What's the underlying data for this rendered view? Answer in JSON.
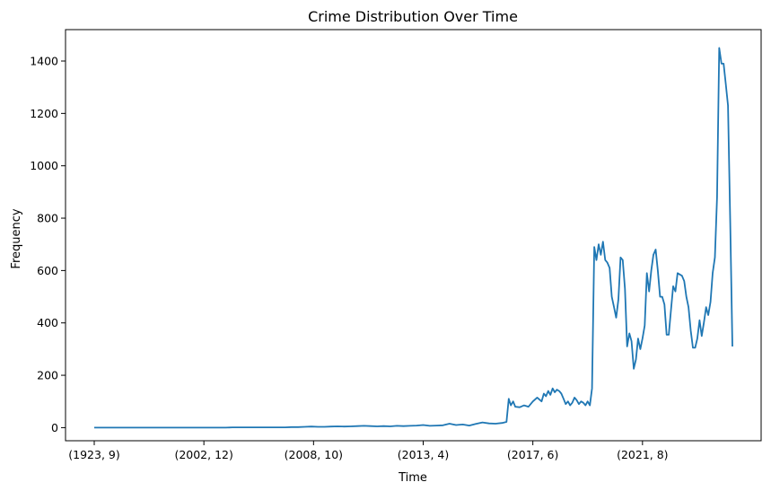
{
  "chart_data": {
    "type": "line",
    "title": "Crime Distribution Over Time",
    "xlabel": "Time",
    "ylabel": "Frequency",
    "ylim": [
      -50,
      1520
    ],
    "y_ticks": [
      0,
      200,
      400,
      600,
      800,
      1000,
      1200,
      1400
    ],
    "x_ticks": [
      {
        "label": "(1923, 9)",
        "index": 0
      },
      {
        "label": "(2002, 12)",
        "index": 50
      },
      {
        "label": "(2008, 10)",
        "index": 100
      },
      {
        "label": "(2013, 4)",
        "index": 150
      },
      {
        "label": "(2017, 6)",
        "index": 200
      },
      {
        "label": "(2021, 8)",
        "index": 250
      }
    ],
    "legend": "none",
    "grid": false,
    "series": [
      {
        "color": "#1f77b4",
        "points": [
          [
            0,
            0
          ],
          [
            3,
            0
          ],
          [
            6,
            0
          ],
          [
            9,
            0
          ],
          [
            12,
            0
          ],
          [
            15,
            0
          ],
          [
            18,
            0
          ],
          [
            21,
            0
          ],
          [
            24,
            0
          ],
          [
            27,
            0
          ],
          [
            30,
            0
          ],
          [
            33,
            0
          ],
          [
            36,
            0
          ],
          [
            39,
            0
          ],
          [
            42,
            0
          ],
          [
            45,
            0
          ],
          [
            48,
            0
          ],
          [
            51,
            0
          ],
          [
            54,
            0
          ],
          [
            57,
            0
          ],
          [
            60,
            0
          ],
          [
            63,
            1
          ],
          [
            66,
            1
          ],
          [
            69,
            1
          ],
          [
            72,
            1
          ],
          [
            75,
            1
          ],
          [
            78,
            1
          ],
          [
            81,
            1
          ],
          [
            84,
            1
          ],
          [
            87,
            1
          ],
          [
            90,
            2
          ],
          [
            93,
            2
          ],
          [
            96,
            3
          ],
          [
            99,
            4
          ],
          [
            102,
            3
          ],
          [
            105,
            3
          ],
          [
            108,
            4
          ],
          [
            111,
            5
          ],
          [
            114,
            4
          ],
          [
            117,
            5
          ],
          [
            120,
            6
          ],
          [
            123,
            7
          ],
          [
            126,
            6
          ],
          [
            129,
            5
          ],
          [
            132,
            6
          ],
          [
            135,
            5
          ],
          [
            138,
            7
          ],
          [
            141,
            6
          ],
          [
            144,
            7
          ],
          [
            147,
            8
          ],
          [
            150,
            10
          ],
          [
            153,
            7
          ],
          [
            156,
            8
          ],
          [
            159,
            9
          ],
          [
            162,
            15
          ],
          [
            165,
            10
          ],
          [
            168,
            12
          ],
          [
            171,
            8
          ],
          [
            174,
            14
          ],
          [
            177,
            20
          ],
          [
            180,
            16
          ],
          [
            183,
            15
          ],
          [
            186,
            18
          ],
          [
            188,
            22
          ],
          [
            189,
            110
          ],
          [
            190,
            85
          ],
          [
            191,
            100
          ],
          [
            192,
            80
          ],
          [
            194,
            78
          ],
          [
            196,
            85
          ],
          [
            198,
            80
          ],
          [
            200,
            100
          ],
          [
            202,
            115
          ],
          [
            204,
            100
          ],
          [
            205,
            130
          ],
          [
            206,
            120
          ],
          [
            207,
            140
          ],
          [
            208,
            125
          ],
          [
            209,
            150
          ],
          [
            210,
            135
          ],
          [
            211,
            145
          ],
          [
            212,
            140
          ],
          [
            213,
            130
          ],
          [
            214,
            110
          ],
          [
            215,
            90
          ],
          [
            216,
            100
          ],
          [
            217,
            85
          ],
          [
            218,
            95
          ],
          [
            219,
            115
          ],
          [
            220,
            105
          ],
          [
            221,
            90
          ],
          [
            222,
            100
          ],
          [
            223,
            95
          ],
          [
            224,
            85
          ],
          [
            225,
            100
          ],
          [
            226,
            85
          ],
          [
            227,
            150
          ],
          [
            228,
            690
          ],
          [
            229,
            640
          ],
          [
            230,
            700
          ],
          [
            231,
            660
          ],
          [
            232,
            710
          ],
          [
            233,
            640
          ],
          [
            234,
            630
          ],
          [
            235,
            610
          ],
          [
            236,
            500
          ],
          [
            237,
            460
          ],
          [
            238,
            420
          ],
          [
            239,
            490
          ],
          [
            240,
            650
          ],
          [
            241,
            640
          ],
          [
            242,
            530
          ],
          [
            243,
            310
          ],
          [
            244,
            360
          ],
          [
            245,
            330
          ],
          [
            246,
            225
          ],
          [
            247,
            260
          ],
          [
            248,
            340
          ],
          [
            249,
            300
          ],
          [
            250,
            340
          ],
          [
            251,
            390
          ],
          [
            252,
            590
          ],
          [
            253,
            520
          ],
          [
            254,
            600
          ],
          [
            255,
            660
          ],
          [
            256,
            680
          ],
          [
            257,
            600
          ],
          [
            258,
            500
          ],
          [
            259,
            500
          ],
          [
            260,
            470
          ],
          [
            261,
            355
          ],
          [
            262,
            355
          ],
          [
            263,
            450
          ],
          [
            264,
            540
          ],
          [
            265,
            520
          ],
          [
            266,
            590
          ],
          [
            267,
            585
          ],
          [
            268,
            580
          ],
          [
            269,
            560
          ],
          [
            270,
            500
          ],
          [
            271,
            460
          ],
          [
            272,
            370
          ],
          [
            273,
            305
          ],
          [
            274,
            305
          ],
          [
            275,
            340
          ],
          [
            276,
            410
          ],
          [
            277,
            350
          ],
          [
            278,
            400
          ],
          [
            279,
            460
          ],
          [
            280,
            430
          ],
          [
            281,
            480
          ],
          [
            282,
            590
          ],
          [
            283,
            650
          ],
          [
            284,
            880
          ],
          [
            285,
            1450
          ],
          [
            286,
            1390
          ],
          [
            287,
            1390
          ],
          [
            288,
            1310
          ],
          [
            289,
            1230
          ],
          [
            290,
            780
          ],
          [
            291,
            310
          ]
        ]
      }
    ]
  }
}
